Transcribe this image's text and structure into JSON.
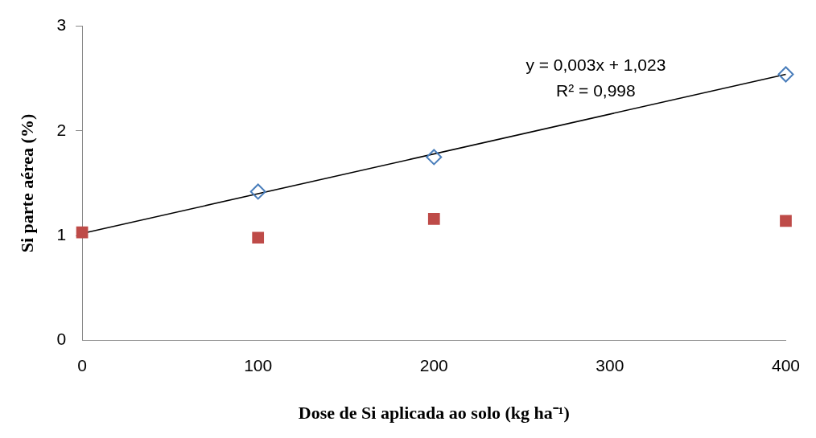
{
  "chart_data": {
    "type": "scatter",
    "xlabel": "Dose de Si aplicada ao solo (kg ha⁻¹)",
    "ylabel": "Si parte aérea (%)",
    "x": [
      0,
      100,
      200,
      400
    ],
    "xlim": [
      0,
      400
    ],
    "xticks": [
      0,
      100,
      200,
      300,
      400
    ],
    "ylim": [
      0,
      3
    ],
    "yticks": [
      0,
      1,
      2,
      3
    ],
    "grid": false,
    "legend": false,
    "series": [
      {
        "color": "#4a7ebb",
        "marker": "diamond",
        "values": [
          null,
          1.42,
          1.75,
          2.54
        ]
      },
      {
        "color": "#be4b48",
        "marker": "square",
        "values": [
          1.03,
          0.98,
          1.16,
          1.14
        ]
      },
      {
        "type": "line",
        "color": "#000000",
        "marker": "none",
        "x": [
          0,
          400
        ],
        "values": [
          1.02,
          2.54
        ]
      }
    ],
    "annotations": [
      "y = 0,003x + 1,023",
      "R² = 0,998"
    ]
  }
}
